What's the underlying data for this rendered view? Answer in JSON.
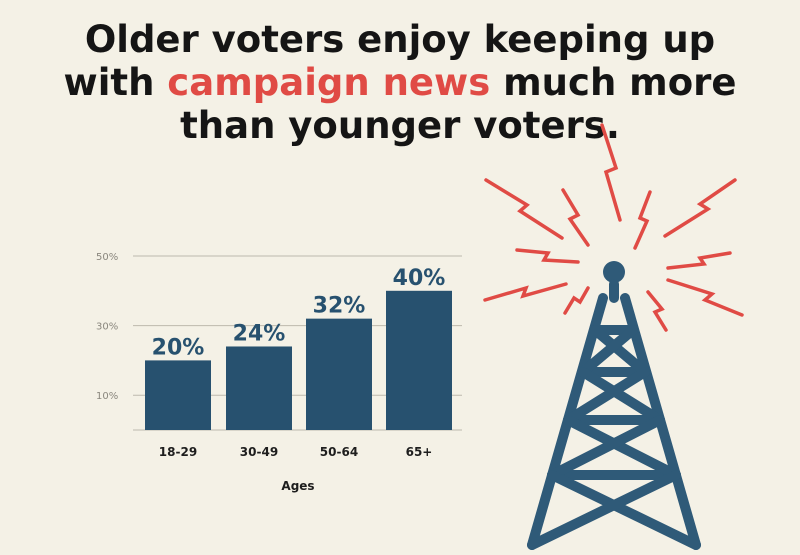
{
  "title": {
    "line1": "Older voters enjoy keeping up",
    "line2_prefix": "with ",
    "line2_highlight": "campaign news",
    "line2_suffix": " much more",
    "line3": "than younger voters."
  },
  "colors": {
    "background": "#f4f1e6",
    "bar": "#27516f",
    "text": "#151515",
    "highlight": "#e04b45",
    "tower": "#2f5a78",
    "signal": "#e04b45"
  },
  "icon": "radio-tower-icon",
  "chart_data": {
    "type": "bar",
    "categories": [
      "18-29",
      "30-49",
      "50-64",
      "65+"
    ],
    "values": [
      20,
      24,
      32,
      40
    ],
    "data_labels": [
      "20%",
      "24%",
      "32%",
      "40%"
    ],
    "xlabel": "Ages",
    "ylabel": "",
    "yticks": [
      10,
      30,
      50
    ],
    "ytick_labels": [
      "10%",
      "30%",
      "50%"
    ],
    "ylim": [
      0,
      50
    ],
    "grid": true
  }
}
